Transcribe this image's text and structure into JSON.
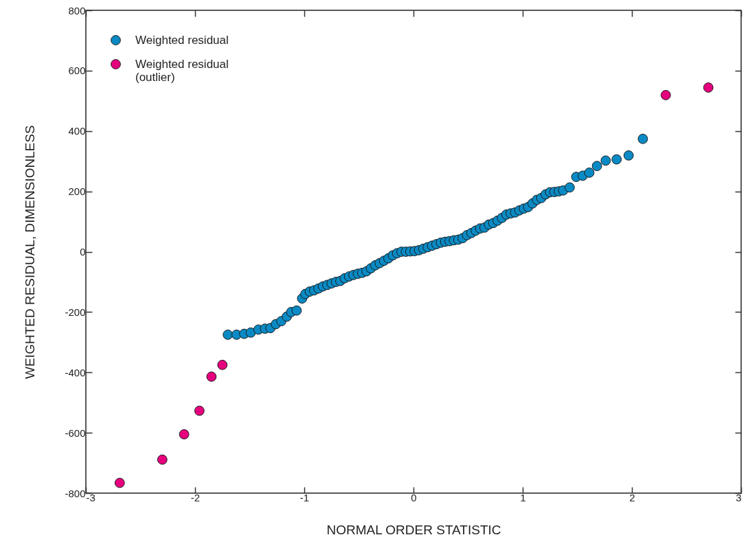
{
  "chart_data": {
    "type": "scatter",
    "xlabel": "NORMAL ORDER STATISTIC",
    "ylabel": "WEIGHTED RESIDUAL, DIMENSIONLESS",
    "xlim": [
      -3,
      3
    ],
    "xticks": [
      -3,
      -2,
      -1,
      0,
      1,
      2,
      3
    ],
    "ylim": [
      -800,
      800
    ],
    "yticks": [
      -800,
      -600,
      -400,
      -200,
      0,
      200,
      400,
      600,
      800
    ],
    "grid": false,
    "legend": "top left",
    "marker": "circle",
    "series": [
      {
        "name": "Weighted residual",
        "color": "#0a8ac4",
        "x": [
          -1.7,
          -1.62,
          -1.55,
          -1.49,
          -1.42,
          -1.36,
          -1.31,
          -1.26,
          -1.21,
          -1.16,
          -1.12,
          -1.07,
          -1.02,
          -0.99,
          -0.95,
          -0.91,
          -0.87,
          -0.83,
          -0.79,
          -0.75,
          -0.71,
          -0.67,
          -0.63,
          -0.59,
          -0.55,
          -0.51,
          -0.47,
          -0.43,
          -0.39,
          -0.35,
          -0.31,
          -0.27,
          -0.23,
          -0.19,
          -0.15,
          -0.11,
          -0.07,
          -0.03,
          0.01,
          0.05,
          0.09,
          0.13,
          0.17,
          0.21,
          0.25,
          0.29,
          0.33,
          0.37,
          0.41,
          0.45,
          0.49,
          0.53,
          0.57,
          0.61,
          0.65,
          0.69,
          0.73,
          0.77,
          0.81,
          0.85,
          0.89,
          0.93,
          0.97,
          1.01,
          1.05,
          1.09,
          1.13,
          1.17,
          1.21,
          1.25,
          1.29,
          1.33,
          1.37,
          1.43,
          1.49,
          1.55,
          1.61,
          1.68,
          1.76,
          1.86,
          1.97,
          2.1
        ],
        "values": [
          -275,
          -275,
          -272,
          -268,
          -258,
          -255,
          -253,
          -240,
          -230,
          -215,
          -200,
          -195,
          -155,
          -140,
          -132,
          -128,
          -122,
          -115,
          -110,
          -105,
          -100,
          -97,
          -88,
          -82,
          -77,
          -73,
          -70,
          -65,
          -55,
          -45,
          -38,
          -30,
          -22,
          -12,
          -5,
          0,
          0,
          1,
          2,
          5,
          10,
          15,
          20,
          25,
          30,
          33,
          35,
          38,
          40,
          45,
          55,
          62,
          70,
          77,
          80,
          90,
          95,
          103,
          112,
          123,
          127,
          130,
          137,
          143,
          148,
          160,
          172,
          178,
          190,
          197,
          198,
          200,
          203,
          213,
          248,
          252,
          262,
          284,
          302,
          306,
          319,
          374
        ]
      },
      {
        "name": "Weighted residual (outlier)",
        "color": "#e6007e",
        "x": [
          -2.69,
          -2.3,
          -2.1,
          -1.96,
          -1.85,
          -1.75,
          2.31,
          2.7
        ],
        "values": [
          -766,
          -689,
          -605,
          -527,
          -414,
          -375,
          519,
          544
        ]
      }
    ]
  }
}
